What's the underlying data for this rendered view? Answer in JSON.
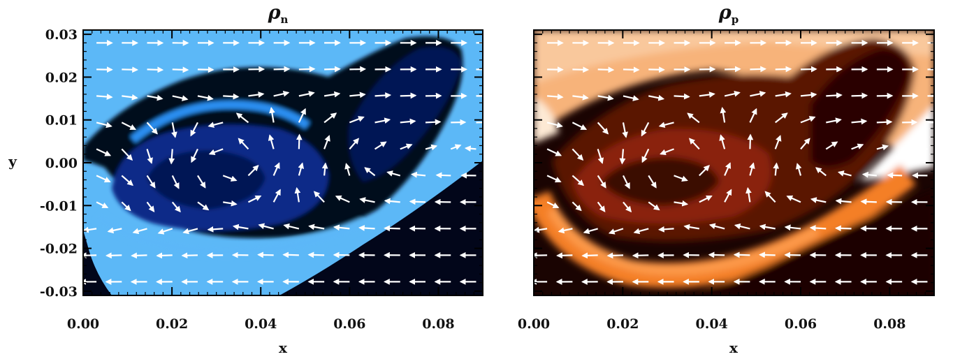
{
  "figure": {
    "panels": [
      {
        "id": "left",
        "title_symbol": "ρ",
        "title_subscript": "n",
        "colormap": "blues",
        "background_colors": [
          "#5cb8f7",
          "#2266cc",
          "#0b2a88",
          "#03081f"
        ],
        "xlabel": "x",
        "ylabel": "y"
      },
      {
        "id": "right",
        "title_symbol": "ρ",
        "title_subscript": "p",
        "colormap": "heat",
        "background_colors": [
          "#fbe2c8",
          "#f6a060",
          "#e06a1c",
          "#8a2408",
          "#1a0402"
        ],
        "xlabel": "x",
        "ylabel": ""
      }
    ]
  },
  "chart_data": [
    {
      "type": "heatmap",
      "title": "ρn",
      "xlabel": "x",
      "ylabel": "y",
      "xlim": [
        0.0,
        0.09
      ],
      "ylim": [
        -0.031,
        0.031
      ],
      "xticks": [
        "0.00",
        "0.02",
        "0.04",
        "0.06",
        "0.08"
      ],
      "yticks": [
        "0.03",
        "0.02",
        "0.01",
        "0.00",
        "-0.01",
        "-0.02",
        "-0.03"
      ],
      "overlay": "velocity-vectors",
      "colors": [
        "#5cb8f7",
        "#03081f"
      ]
    },
    {
      "type": "heatmap",
      "title": "ρp",
      "xlabel": "x",
      "ylabel": "",
      "xlim": [
        0.0,
        0.09
      ],
      "ylim": [
        -0.031,
        0.031
      ],
      "xticks": [
        "0.00",
        "0.02",
        "0.04",
        "0.06",
        "0.08"
      ],
      "yticks": [],
      "overlay": "velocity-vectors",
      "colors": [
        "#fbe2c8",
        "#1a0402"
      ]
    }
  ]
}
